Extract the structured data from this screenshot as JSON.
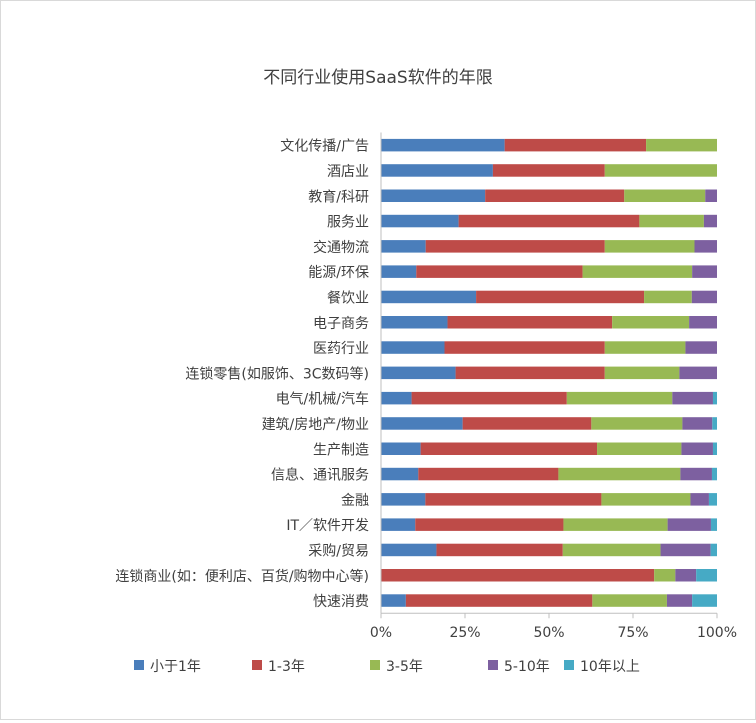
{
  "chart_data": {
    "type": "bar",
    "orientation": "horizontal",
    "stacked": "percent",
    "title": "不同行业使用SaaS软件的年限",
    "xlabel": "",
    "ylabel": "",
    "xlim": [
      0,
      100
    ],
    "x_tick_labels": [
      "0%",
      "25%",
      "50%",
      "75%",
      "100%"
    ],
    "grid": false,
    "legend_position": "bottom",
    "categories": [
      "文化传播/广告",
      "酒店业",
      "教育/科研",
      "服务业",
      "交通物流",
      "能源/环保",
      "餐饮业",
      "电子商务",
      "医药行业",
      "连锁零售(如服饰、3C数码等)",
      "电气/机械/汽车",
      "建筑/房地产/物业",
      "生产制造",
      "信息、通讯服务",
      "金融",
      "IT／软件开发",
      "采购/贸易",
      "连锁商业(如：便利店、百货/购物中心等)",
      "快速消费"
    ],
    "series": [
      {
        "name": "小于1年",
        "color": "#4a7ebb",
        "values": [
          36.8,
          33.3,
          31.0,
          23.1,
          13.3,
          10.5,
          28.3,
          19.8,
          18.9,
          22.2,
          9.1,
          24.3,
          11.8,
          11.1,
          13.2,
          10.2,
          16.5,
          0.0,
          7.4
        ]
      },
      {
        "name": "1-3年",
        "color": "#be4b48",
        "values": [
          42.1,
          33.3,
          41.4,
          53.8,
          53.3,
          49.5,
          50.0,
          49.0,
          47.7,
          44.4,
          46.2,
          38.3,
          52.5,
          41.7,
          52.4,
          44.1,
          37.6,
          81.3,
          55.5
        ]
      },
      {
        "name": "3-5年",
        "color": "#98b954",
        "values": [
          21.1,
          33.4,
          24.1,
          19.2,
          26.7,
          32.6,
          14.2,
          22.9,
          24.0,
          22.2,
          31.4,
          27.1,
          25.1,
          36.3,
          26.5,
          31.0,
          29.1,
          6.3,
          22.2
        ]
      },
      {
        "name": "5-10年",
        "color": "#7d60a0",
        "values": [
          0.0,
          0.0,
          3.5,
          3.9,
          6.7,
          7.4,
          7.5,
          8.3,
          9.4,
          11.2,
          12.1,
          8.9,
          9.4,
          9.4,
          5.5,
          12.9,
          14.9,
          6.2,
          7.5
        ]
      },
      {
        "name": "10年以上",
        "color": "#46aac5",
        "values": [
          0.0,
          0.0,
          0.0,
          0.0,
          0.0,
          0.0,
          0.0,
          0.0,
          0.0,
          0.0,
          1.2,
          1.4,
          1.2,
          1.5,
          2.4,
          1.8,
          1.9,
          6.2,
          7.4
        ]
      }
    ]
  }
}
